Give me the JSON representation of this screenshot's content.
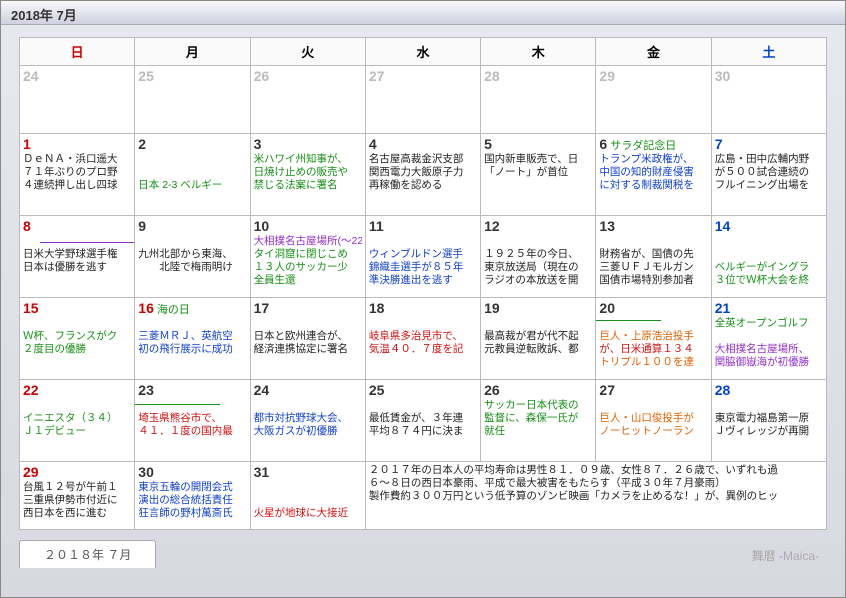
{
  "title": "2018年 7月",
  "brand": "舞暦 -Maica-",
  "tab_label": "２０１８年 ７月",
  "weekdays": [
    {
      "label": "日",
      "cls": "sun"
    },
    {
      "label": "月",
      "cls": ""
    },
    {
      "label": "火",
      "cls": ""
    },
    {
      "label": "水",
      "cls": ""
    },
    {
      "label": "木",
      "cls": ""
    },
    {
      "label": "金",
      "cls": ""
    },
    {
      "label": "土",
      "cls": "sat"
    }
  ],
  "weeks": [
    [
      {
        "n": "24",
        "ncls": "gray",
        "wk": "wk0",
        "events": []
      },
      {
        "n": "25",
        "ncls": "gray",
        "wk": "wk0",
        "events": []
      },
      {
        "n": "26",
        "ncls": "gray",
        "wk": "wk0",
        "events": []
      },
      {
        "n": "27",
        "ncls": "gray",
        "wk": "wk0",
        "events": []
      },
      {
        "n": "28",
        "ncls": "gray",
        "wk": "wk0",
        "events": []
      },
      {
        "n": "29",
        "ncls": "gray",
        "wk": "wk0",
        "events": []
      },
      {
        "n": "30",
        "ncls": "gray sat",
        "wk": "wk0",
        "events": []
      }
    ],
    [
      {
        "n": "1",
        "ncls": "sun",
        "events": [
          {
            "t": "ＤｅＮＡ・浜口遥大",
            "c": "c-blk"
          },
          {
            "t": "７１年ぶりのプロ野",
            "c": "c-blk"
          },
          {
            "t": "４連続押し出し四球",
            "c": "c-blk"
          }
        ]
      },
      {
        "n": "2",
        "ncls": "",
        "events": [
          {
            "t": "　",
            "c": "c-blk"
          },
          {
            "t": "　",
            "c": "c-blk"
          },
          {
            "t": "日本 2-3 ベルギー",
            "c": "c-grn"
          }
        ]
      },
      {
        "n": "3",
        "ncls": "",
        "events": [
          {
            "t": "米ハワイ州知事が、",
            "c": "c-grn"
          },
          {
            "t": "日焼け止めの販売や",
            "c": "c-grn"
          },
          {
            "t": "禁じる法案に署名",
            "c": "c-grn"
          }
        ]
      },
      {
        "n": "4",
        "ncls": "",
        "events": [
          {
            "t": "名古屋高裁金沢支部",
            "c": "c-blk"
          },
          {
            "t": "関西電力大飯原子力",
            "c": "c-blk"
          },
          {
            "t": "再稼働を認める",
            "c": "c-blk"
          }
        ]
      },
      {
        "n": "5",
        "ncls": "",
        "events": [
          {
            "t": "国内新車販売で、日",
            "c": "c-blk"
          },
          {
            "t": "「ノート」が首位",
            "c": "c-blk"
          }
        ]
      },
      {
        "n": "6",
        "ncls": "",
        "holiday": "サラダ記念日",
        "events": [
          {
            "t": "トランプ米政権が、",
            "c": "c-blu"
          },
          {
            "t": "中国の知的財産侵害",
            "c": "c-blu"
          },
          {
            "t": "に対する制裁関税を",
            "c": "c-blu"
          }
        ]
      },
      {
        "n": "7",
        "ncls": "sat",
        "events": [
          {
            "t": "広島・田中広輔内野",
            "c": "c-blk"
          },
          {
            "t": "が５００試合連続の",
            "c": "c-blk"
          },
          {
            "t": "フルイニング出場を",
            "c": "c-blk"
          }
        ]
      }
    ],
    [
      {
        "n": "8",
        "ncls": "sun",
        "events": [
          {
            "t": "　",
            "c": "c-blk"
          },
          {
            "t": "日米大学野球選手権",
            "c": "c-blk"
          },
          {
            "t": "日本は優勝を逃す",
            "c": "c-blk"
          }
        ],
        "bar": "bar-pur"
      },
      {
        "n": "9",
        "ncls": "",
        "events": [
          {
            "t": "　",
            "c": "c-blk"
          },
          {
            "t": "九州北部から東海、",
            "c": "c-blk"
          },
          {
            "t": "　　北陸で梅雨明け",
            "c": "c-blk"
          }
        ]
      },
      {
        "n": "10",
        "ncls": "",
        "events": [
          {
            "t": "大相撲名古屋場所(～22)",
            "c": "c-pur"
          },
          {
            "t": "タイ洞窟に閉じこめ",
            "c": "c-grn"
          },
          {
            "t": "１３人のサッカー少",
            "c": "c-grn"
          },
          {
            "t": "全員生還",
            "c": "c-grn"
          }
        ]
      },
      {
        "n": "11",
        "ncls": "",
        "events": [
          {
            "t": "　",
            "c": "c-blk"
          },
          {
            "t": "ウィンブルドン選手",
            "c": "c-blu"
          },
          {
            "t": "錦織圭選手が８５年",
            "c": "c-blu"
          },
          {
            "t": "準決勝進出を逃す",
            "c": "c-blu"
          }
        ]
      },
      {
        "n": "12",
        "ncls": "",
        "events": [
          {
            "t": "　",
            "c": "c-blk"
          },
          {
            "t": "１９２５年の今日、",
            "c": "c-blk"
          },
          {
            "t": "東京放送局（現在の",
            "c": "c-blk"
          },
          {
            "t": "ラジオの本放送を開",
            "c": "c-blk"
          }
        ]
      },
      {
        "n": "13",
        "ncls": "",
        "events": [
          {
            "t": "　",
            "c": "c-blk"
          },
          {
            "t": "財務省が、国債の先",
            "c": "c-blk"
          },
          {
            "t": "三菱ＵＦＪモルガン",
            "c": "c-blk"
          },
          {
            "t": "国債市場特別参加者",
            "c": "c-blk"
          }
        ]
      },
      {
        "n": "14",
        "ncls": "sat",
        "events": [
          {
            "t": "　",
            "c": "c-blk"
          },
          {
            "t": "　",
            "c": "c-blk"
          },
          {
            "t": "ベルギーがイングラ",
            "c": "c-grn"
          },
          {
            "t": "３位でＷ杯大会を終",
            "c": "c-grn"
          }
        ]
      }
    ],
    [
      {
        "n": "15",
        "ncls": "sun",
        "events": [
          {
            "t": "　",
            "c": "c-blk"
          },
          {
            "t": "Ｗ杯、フランスがク",
            "c": "c-grn"
          },
          {
            "t": "２度目の優勝",
            "c": "c-grn"
          }
        ]
      },
      {
        "n": "16",
        "ncls": "holiday",
        "holiday": "海の日",
        "events": [
          {
            "t": "　",
            "c": "c-blk"
          },
          {
            "t": "三菱ＭＲＪ、英航空",
            "c": "c-blu"
          },
          {
            "t": "初の飛行展示に成功",
            "c": "c-blu"
          }
        ]
      },
      {
        "n": "17",
        "ncls": "",
        "events": [
          {
            "t": "　",
            "c": "c-blk"
          },
          {
            "t": "日本と欧州連合が、",
            "c": "c-blk"
          },
          {
            "t": "経済連携協定に署名",
            "c": "c-blk"
          }
        ]
      },
      {
        "n": "18",
        "ncls": "",
        "events": [
          {
            "t": "　",
            "c": "c-blk"
          },
          {
            "t": "岐阜県多治見市で、",
            "c": "c-red"
          },
          {
            "t": "気温４０．７度を記",
            "c": "c-red"
          }
        ]
      },
      {
        "n": "19",
        "ncls": "",
        "events": [
          {
            "t": "　",
            "c": "c-blk"
          },
          {
            "t": "最高裁が君が代不起",
            "c": "c-blk"
          },
          {
            "t": "元教員逆転敗訴、都",
            "c": "c-blk"
          }
        ]
      },
      {
        "n": "20",
        "ncls": "",
        "events": [
          {
            "t": "　",
            "c": "c-blk"
          },
          {
            "t": "巨人・上原浩治投手",
            "c": "c-org"
          },
          {
            "t": "が、日米通算１３４",
            "c": "c-red"
          },
          {
            "t": "トリプル１００を達",
            "c": "c-org"
          }
        ],
        "bar": "bar-grn1"
      },
      {
        "n": "21",
        "ncls": "sat",
        "events": [
          {
            "t": "全英オープンゴルフ",
            "c": "c-grn"
          },
          {
            "t": "　",
            "c": "c-blk"
          },
          {
            "t": "大相撲名古屋場所、",
            "c": "c-pur"
          },
          {
            "t": "関脇御嶽海が初優勝",
            "c": "c-pur"
          }
        ]
      }
    ],
    [
      {
        "n": "22",
        "ncls": "sun",
        "events": [
          {
            "t": "　",
            "c": "c-blk"
          },
          {
            "t": "イニエスタ（３４）",
            "c": "c-grn"
          },
          {
            "t": "Ｊ１デビュー",
            "c": "c-grn"
          }
        ]
      },
      {
        "n": "23",
        "ncls": "",
        "events": [
          {
            "t": "　",
            "c": "c-blk"
          },
          {
            "t": "埼玉県熊谷市で、",
            "c": "c-red"
          },
          {
            "t": "４１．１度の国内最",
            "c": "c-red"
          }
        ],
        "bar": "bar-grn2"
      },
      {
        "n": "24",
        "ncls": "",
        "events": [
          {
            "t": "　",
            "c": "c-blk"
          },
          {
            "t": "都市対抗野球大会、",
            "c": "c-blu"
          },
          {
            "t": "大阪ガスが初優勝",
            "c": "c-blu"
          }
        ]
      },
      {
        "n": "25",
        "ncls": "",
        "events": [
          {
            "t": "　",
            "c": "c-blk"
          },
          {
            "t": "最低賃金が、３年連",
            "c": "c-blk"
          },
          {
            "t": "平均８７４円に決ま",
            "c": "c-blk"
          }
        ]
      },
      {
        "n": "26",
        "ncls": "",
        "events": [
          {
            "t": "サッカー日本代表の",
            "c": "c-grn"
          },
          {
            "t": "監督に、森保一氏が",
            "c": "c-grn"
          },
          {
            "t": "就任",
            "c": "c-grn"
          }
        ]
      },
      {
        "n": "27",
        "ncls": "",
        "events": [
          {
            "t": "　",
            "c": "c-blk"
          },
          {
            "t": "巨人・山口俊投手が",
            "c": "c-org"
          },
          {
            "t": "ノーヒットノーラン",
            "c": "c-org"
          }
        ]
      },
      {
        "n": "28",
        "ncls": "sat",
        "events": [
          {
            "t": "　",
            "c": "c-blk"
          },
          {
            "t": "東京電力福島第一原",
            "c": "c-blk"
          },
          {
            "t": "Ｊヴィレッジが再開",
            "c": "c-blk"
          }
        ]
      }
    ],
    [
      {
        "n": "29",
        "ncls": "sun",
        "wk": "wk5",
        "events": [
          {
            "t": "台風１２号が午前１",
            "c": "c-blk"
          },
          {
            "t": "三重県伊勢市付近に",
            "c": "c-blk"
          },
          {
            "t": "西日本を西に進む",
            "c": "c-blk"
          }
        ]
      },
      {
        "n": "30",
        "ncls": "",
        "wk": "wk5",
        "events": [
          {
            "t": "東京五輪の開閉会式",
            "c": "c-blu"
          },
          {
            "t": "演出の総合統括責任",
            "c": "c-blu"
          },
          {
            "t": "狂言師の野村萬斎氏",
            "c": "c-blu"
          }
        ]
      },
      {
        "n": "31",
        "ncls": "",
        "wk": "wk5",
        "events": [
          {
            "t": "　",
            "c": "c-blk"
          },
          {
            "t": "　",
            "c": "c-blk"
          },
          {
            "t": "火星が地球に大接近",
            "c": "c-red"
          }
        ]
      },
      {
        "summary": true,
        "span": 4,
        "wk": "wk5",
        "lines": [
          "２０１７年の日本人の平均寿命は男性８１．０９歳、女性８７．２６歳で、いずれも過",
          "６～８日の西日本豪雨、平成で最大被害をもたらす（平成３０年７月豪雨）",
          "製作費約３００万円という低予算のゾンビ映画「カメラを止めるな！」が、異例のヒッ"
        ]
      }
    ]
  ]
}
